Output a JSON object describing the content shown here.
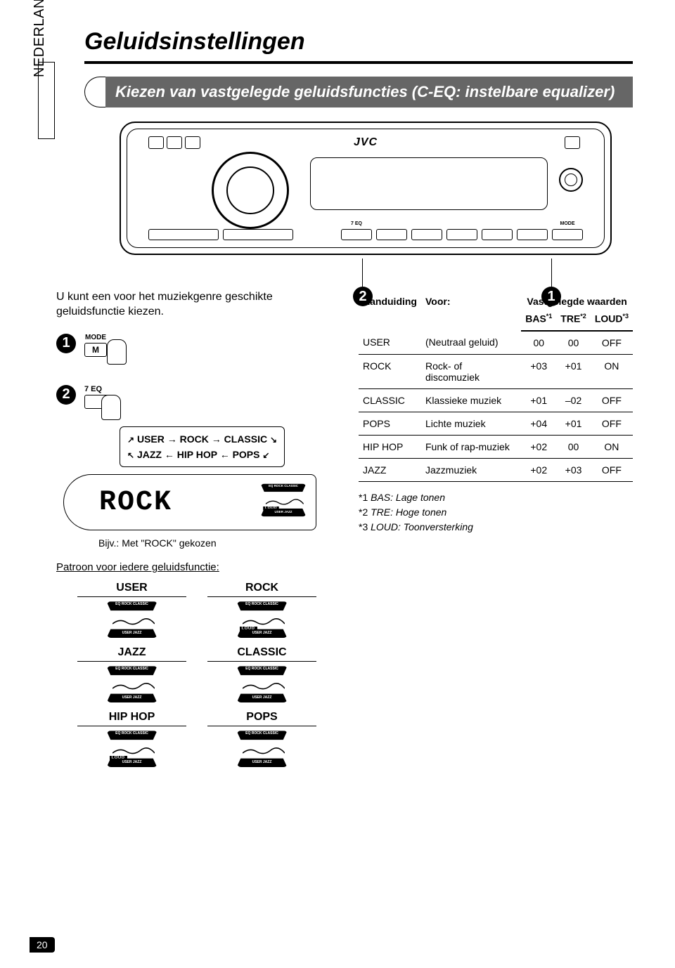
{
  "page_title": "Geluidsinstellingen",
  "sidebar_language": "NEDERLANDS",
  "section_heading": "Kiezen van vastgelegde geluidsfuncties (C-EQ: instelbare equalizer)",
  "stereo": {
    "brand": "JVC",
    "eq_btn_label": "7 EQ",
    "mode_btn_label": "MODE"
  },
  "callouts": {
    "n1": "1",
    "n2": "2"
  },
  "intro_text": "U kunt een voor het muziekgenre geschikte geluidsfunctie kiezen.",
  "step1": {
    "mode_top": "MODE",
    "mode_key": "M"
  },
  "step2": {
    "eq_label": "7 EQ",
    "seq_line1_a": "USER",
    "seq_line1_b": "ROCK",
    "seq_line1_c": "CLASSIC",
    "seq_line2_a": "JAZZ",
    "seq_line2_b": "HIP HOP",
    "seq_line2_c": "POPS"
  },
  "lcd_text": "ROCK",
  "caption": "Bijv.: Met \"ROCK\" gekozen",
  "pattern_title": "Patroon voor iedere geluidsfunctie:",
  "patterns": [
    {
      "label": "USER",
      "loud": false
    },
    {
      "label": "ROCK",
      "loud": true
    },
    {
      "label": "JAZZ",
      "loud": false
    },
    {
      "label": "CLASSIC",
      "loud": false
    },
    {
      "label": "HIP HOP",
      "loud": true
    },
    {
      "label": "POPS",
      "loud": false
    }
  ],
  "table": {
    "head": {
      "col1": "Aanduiding",
      "col2": "Voor:",
      "col3_group": "Vastgelegde waarden",
      "bas": "BAS",
      "tre": "TRE",
      "loud": "LOUD",
      "sup1": "*1",
      "sup2": "*2",
      "sup3": "*3"
    },
    "rows": [
      {
        "name": "USER",
        "desc": "(Neutraal geluid)",
        "bas": "00",
        "tre": "00",
        "loud": "OFF"
      },
      {
        "name": "ROCK",
        "desc": "Rock- of discomuziek",
        "bas": "+03",
        "tre": "+01",
        "loud": "ON"
      },
      {
        "name": "CLASSIC",
        "desc": "Klassieke muziek",
        "bas": "+01",
        "tre": "–02",
        "loud": "OFF"
      },
      {
        "name": "POPS",
        "desc": "Lichte muziek",
        "bas": "+04",
        "tre": "+01",
        "loud": "OFF"
      },
      {
        "name": "HIP HOP",
        "desc": "Funk of rap-muziek",
        "bas": "+02",
        "tre": "00",
        "loud": "ON"
      },
      {
        "name": "JAZZ",
        "desc": "Jazzmuziek",
        "bas": "+02",
        "tre": "+03",
        "loud": "OFF"
      }
    ]
  },
  "footnotes": {
    "f1_lbl": "*1",
    "f1": "BAS: Lage tonen",
    "f2_lbl": "*2",
    "f2": "TRE: Hoge tonen",
    "f3_lbl": "*3",
    "f3": "LOUD: Toonversterking"
  },
  "page_number": "20",
  "eq_icon_top": "EQ  ROCK CLASSIC",
  "eq_icon_bot": "USER  JAZZ",
  "loud_text": "LOUD"
}
